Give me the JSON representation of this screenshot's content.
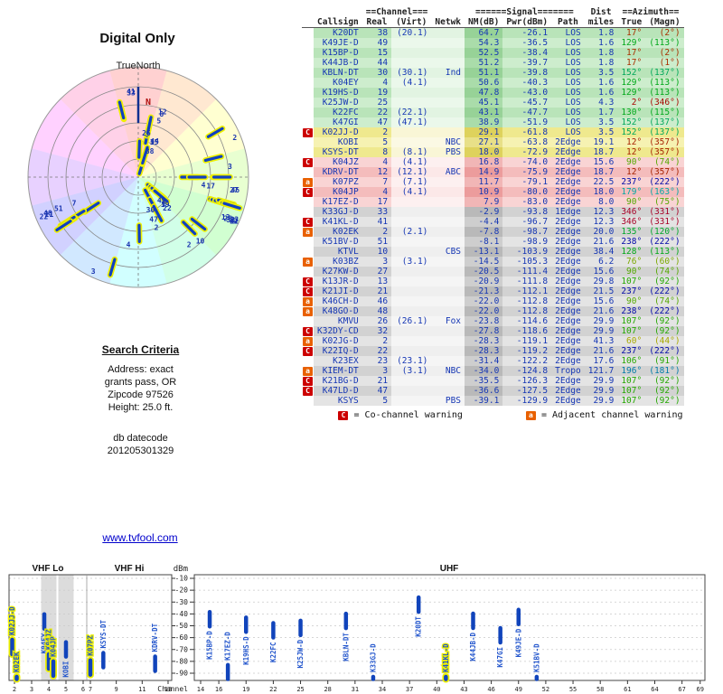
{
  "radar": {
    "title": "Digital Only",
    "compass_label": "TrueNorth",
    "north_marker": "N"
  },
  "search": {
    "heading": "Search Criteria",
    "lines": [
      "Address: exact",
      "grants pass, OR",
      "Zipcode 97526",
      "Height: 25.0 ft."
    ]
  },
  "datecode": {
    "label": "db datecode",
    "value": "201205301329"
  },
  "link": {
    "text": "www.tvfool.com"
  },
  "table": {
    "header1": {
      "channel": "==Channel===",
      "signal": "======Signal=======",
      "dist": "Dist",
      "azimuth": "==Azimuth=="
    },
    "header2": [
      "Callsign",
      "Real",
      "(Virt)",
      "Netwk",
      "NM(dB)",
      "Pwr(dBm)",
      "Path",
      "miles",
      "True",
      "(Magn)"
    ],
    "legend": {
      "c": "C",
      "c_text": "= Co-channel warning",
      "a": "a",
      "a_text": "= Adjacent channel warning"
    }
  },
  "colors": {
    "spoke_blue": "#1040c0",
    "spoke_halo": "#eef000",
    "bar_blue": "#1144bb",
    "warn_c_red": "#cc0000",
    "warn_a_orange": "#e86000",
    "link_blue": "#0000cc",
    "tier_green": "#b9e4b9",
    "tier_yellow": "#efe98e",
    "tier_pink": "#f4bcbc",
    "tier_gray": "#d2d2d2"
  },
  "chart_data": {
    "type": "composite",
    "radar_plot": {
      "type": "polar",
      "angular_axis": "true azimuth, N up",
      "radial_axis": "signal strength, stronger toward center",
      "spoke_label": "real channel"
    },
    "lower_chart": {
      "type": "bar",
      "ylabel": "dBm",
      "yticks": [
        -10,
        -20,
        -30,
        -40,
        -50,
        -60,
        -70,
        -80,
        -90
      ],
      "xlabel": "Channel",
      "bands": [
        "VHF Lo",
        "VHF Hi",
        "UHF"
      ],
      "xticks_vhf_lo": [
        2,
        3,
        4,
        5,
        6
      ],
      "xticks_vhf_hi": [
        7,
        9,
        11,
        13
      ],
      "xticks_uhf": [
        14,
        16,
        19,
        22,
        25,
        28,
        31,
        34,
        37,
        40,
        43,
        46,
        49,
        52,
        55,
        58,
        61,
        64,
        67,
        69
      ],
      "shaded_channels": [
        4,
        5
      ],
      "bar_threshold_dbm": -99.5
    },
    "stations_columns": [
      "callsign",
      "real_ch",
      "virtual_ch",
      "network",
      "nm_db",
      "pwr_dbm",
      "path",
      "dist_miles",
      "azimuth_true",
      "azimuth_magn",
      "warning",
      "tier"
    ],
    "stations": [
      [
        "K20DT",
        38,
        "(20.1)",
        "",
        64.7,
        -26.1,
        "LOS",
        1.8,
        17,
        2,
        "",
        "green"
      ],
      [
        "K49JE-D",
        49,
        "",
        "",
        54.3,
        -36.5,
        "LOS",
        1.6,
        129,
        113,
        "",
        "green"
      ],
      [
        "K15BP-D",
        15,
        "",
        "",
        52.5,
        -38.4,
        "LOS",
        1.8,
        17,
        2,
        "",
        "green"
      ],
      [
        "K44JB-D",
        44,
        "",
        "",
        51.2,
        -39.7,
        "LOS",
        1.8,
        17,
        1,
        "",
        "green"
      ],
      [
        "KBLN-DT",
        30,
        "(30.1)",
        "Ind",
        51.1,
        -39.8,
        "LOS",
        3.5,
        152,
        137,
        "",
        "green"
      ],
      [
        "K04EY",
        4,
        "(4.1)",
        "",
        50.6,
        -40.3,
        "LOS",
        1.6,
        129,
        113,
        "",
        "green"
      ],
      [
        "K19HS-D",
        19,
        "",
        "",
        47.8,
        -43.0,
        "LOS",
        1.6,
        129,
        113,
        "",
        "green"
      ],
      [
        "K25JW-D",
        25,
        "",
        "",
        45.1,
        -45.7,
        "LOS",
        4.3,
        2,
        346,
        "",
        "green"
      ],
      [
        "K22FC",
        22,
        "(22.1)",
        "",
        43.1,
        -47.7,
        "LOS",
        1.7,
        130,
        115,
        "",
        "green"
      ],
      [
        "K47GI",
        47,
        "(47.1)",
        "",
        38.9,
        -51.9,
        "LOS",
        3.5,
        152,
        137,
        "",
        "green"
      ],
      [
        "K02JJ-D",
        2,
        "",
        "",
        29.1,
        -61.8,
        "LOS",
        3.5,
        152,
        137,
        "C",
        "yellow"
      ],
      [
        "KOBI",
        5,
        "",
        "NBC",
        27.1,
        -63.8,
        "2Edge",
        19.1,
        12,
        357,
        "",
        "yellow"
      ],
      [
        "KSYS-DT",
        8,
        "(8.1)",
        "PBS",
        18.0,
        -72.9,
        "2Edge",
        18.7,
        12,
        357,
        "",
        "yellow"
      ],
      [
        "K04JZ",
        4,
        "(4.1)",
        "",
        16.8,
        -74.0,
        "2Edge",
        15.6,
        90,
        74,
        "C",
        "pink"
      ],
      [
        "KDRV-DT",
        12,
        "(12.1)",
        "ABC",
        14.9,
        -75.9,
        "2Edge",
        18.7,
        12,
        357,
        "",
        "pink"
      ],
      [
        "K07PZ",
        7,
        "(7.1)",
        "",
        11.7,
        -79.1,
        "2Edge",
        22.5,
        237,
        222,
        "a",
        "pink"
      ],
      [
        "K04JP",
        4,
        "(4.1)",
        "",
        10.9,
        -80.0,
        "2Edge",
        18.0,
        179,
        163,
        "C",
        "pink"
      ],
      [
        "K17EZ-D",
        17,
        "",
        "",
        7.9,
        -83.0,
        "2Edge",
        8.0,
        90,
        75,
        "",
        "pink"
      ],
      [
        "K33GJ-D",
        33,
        "",
        "",
        -2.9,
        -93.8,
        "1Edge",
        12.3,
        346,
        331,
        "",
        "gray"
      ],
      [
        "K41KL-D",
        41,
        "",
        "",
        -4.4,
        -96.7,
        "2Edge",
        12.3,
        346,
        331,
        "C",
        "gray"
      ],
      [
        "K02EK",
        2,
        "(2.1)",
        "",
        -7.8,
        -98.7,
        "2Edge",
        20.0,
        135,
        120,
        "a",
        "gray"
      ],
      [
        "K51BV-D",
        51,
        "",
        "",
        -8.1,
        -98.9,
        "2Edge",
        21.6,
        238,
        222,
        "",
        "gray"
      ],
      [
        "KTVL",
        10,
        "",
        "CBS",
        -13.1,
        -103.9,
        "2Edge",
        38.4,
        128,
        113,
        "",
        "gray"
      ],
      [
        "K03BZ",
        3,
        "(3.1)",
        "",
        -14.5,
        -105.3,
        "2Edge",
        6.2,
        76,
        60,
        "a",
        "gray"
      ],
      [
        "K27KW-D",
        27,
        "",
        "",
        -20.5,
        -111.4,
        "2Edge",
        15.6,
        90,
        74,
        "",
        "gray"
      ],
      [
        "K13JR-D",
        13,
        "",
        "",
        -20.9,
        -111.8,
        "2Edge",
        29.8,
        107,
        92,
        "C",
        "gray"
      ],
      [
        "K21JI-D",
        21,
        "",
        "",
        -21.3,
        -112.1,
        "2Edge",
        21.5,
        237,
        222,
        "C",
        "gray"
      ],
      [
        "K46CH-D",
        46,
        "",
        "",
        -22.0,
        -112.8,
        "2Edge",
        15.6,
        90,
        74,
        "a",
        "gray"
      ],
      [
        "K48GO-D",
        48,
        "",
        "",
        -22.0,
        -112.8,
        "2Edge",
        21.6,
        238,
        222,
        "a",
        "gray"
      ],
      [
        "KMVU",
        26,
        "(26.1)",
        "Fox",
        -23.8,
        -114.6,
        "2Edge",
        29.9,
        107,
        92,
        "",
        "gray"
      ],
      [
        "K32DY-CD",
        32,
        "",
        "",
        -27.8,
        -118.6,
        "2Edge",
        29.9,
        107,
        92,
        "C",
        "gray"
      ],
      [
        "K02JG-D",
        2,
        "",
        "",
        -28.3,
        -119.1,
        "2Edge",
        41.3,
        60,
        44,
        "a",
        "gray"
      ],
      [
        "K22IQ-D",
        22,
        "",
        "",
        -28.3,
        -119.2,
        "2Edge",
        21.6,
        237,
        222,
        "C",
        "gray"
      ],
      [
        "K23EX",
        23,
        "(23.1)",
        "",
        -31.4,
        -122.2,
        "2Edge",
        17.6,
        106,
        91,
        "",
        "gray"
      ],
      [
        "KIEM-DT",
        3,
        "(3.1)",
        "NBC",
        -34.0,
        -124.8,
        "Tropo",
        121.7,
        196,
        181,
        "a",
        "gray"
      ],
      [
        "K21BG-D",
        21,
        "",
        "",
        -35.5,
        -126.3,
        "2Edge",
        29.9,
        107,
        92,
        "C",
        "gray"
      ],
      [
        "K47LD-D",
        47,
        "",
        "",
        -36.6,
        -127.5,
        "2Edge",
        29.9,
        107,
        92,
        "C",
        "gray"
      ],
      [
        "KSYS",
        5,
        "",
        "PBS",
        -39.1,
        -129.9,
        "2Edge",
        29.9,
        107,
        92,
        "",
        "gray"
      ]
    ]
  }
}
